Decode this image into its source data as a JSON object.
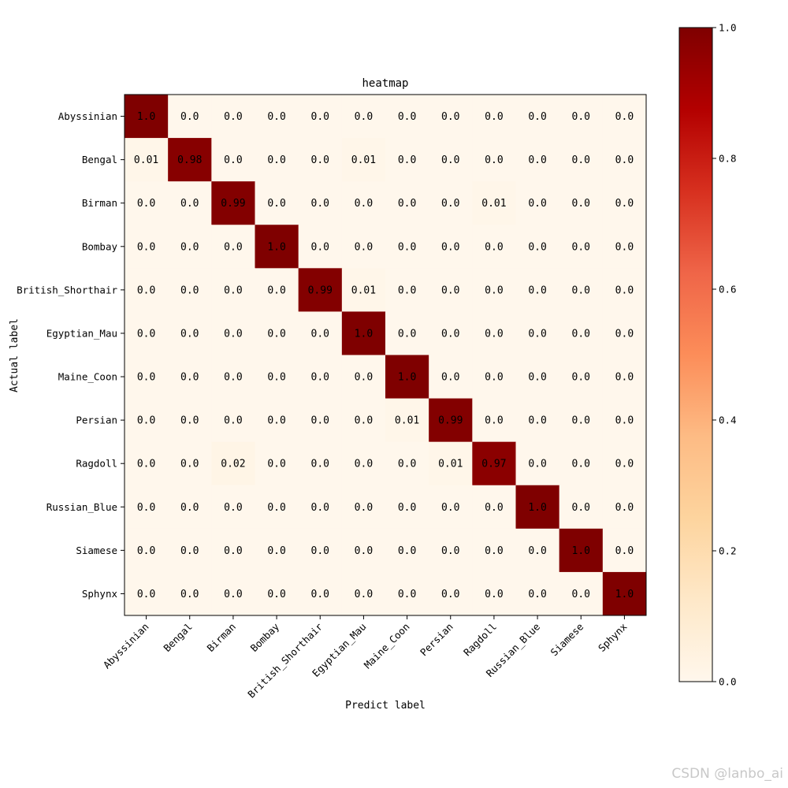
{
  "chart_data": {
    "type": "heatmap",
    "title": "heatmap",
    "xlabel": "Predict label",
    "ylabel": "Actual label",
    "x_categories": [
      "Abyssinian",
      "Bengal",
      "Birman",
      "Bombay",
      "British_Shorthair",
      "Egyptian_Mau",
      "Maine_Coon",
      "Persian",
      "Ragdoll",
      "Russian_Blue",
      "Siamese",
      "Sphynx"
    ],
    "y_categories": [
      "Abyssinian",
      "Bengal",
      "Birman",
      "Bombay",
      "British_Shorthair",
      "Egyptian_Mau",
      "Maine_Coon",
      "Persian",
      "Ragdoll",
      "Russian_Blue",
      "Siamese",
      "Sphynx"
    ],
    "values": [
      [
        1.0,
        0.0,
        0.0,
        0.0,
        0.0,
        0.0,
        0.0,
        0.0,
        0.0,
        0.0,
        0.0,
        0.0
      ],
      [
        0.01,
        0.98,
        0.0,
        0.0,
        0.0,
        0.01,
        0.0,
        0.0,
        0.0,
        0.0,
        0.0,
        0.0
      ],
      [
        0.0,
        0.0,
        0.99,
        0.0,
        0.0,
        0.0,
        0.0,
        0.0,
        0.01,
        0.0,
        0.0,
        0.0
      ],
      [
        0.0,
        0.0,
        0.0,
        1.0,
        0.0,
        0.0,
        0.0,
        0.0,
        0.0,
        0.0,
        0.0,
        0.0
      ],
      [
        0.0,
        0.0,
        0.0,
        0.0,
        0.99,
        0.01,
        0.0,
        0.0,
        0.0,
        0.0,
        0.0,
        0.0
      ],
      [
        0.0,
        0.0,
        0.0,
        0.0,
        0.0,
        1.0,
        0.0,
        0.0,
        0.0,
        0.0,
        0.0,
        0.0
      ],
      [
        0.0,
        0.0,
        0.0,
        0.0,
        0.0,
        0.0,
        1.0,
        0.0,
        0.0,
        0.0,
        0.0,
        0.0
      ],
      [
        0.0,
        0.0,
        0.0,
        0.0,
        0.0,
        0.0,
        0.01,
        0.99,
        0.0,
        0.0,
        0.0,
        0.0
      ],
      [
        0.0,
        0.0,
        0.02,
        0.0,
        0.0,
        0.0,
        0.0,
        0.01,
        0.97,
        0.0,
        0.0,
        0.0
      ],
      [
        0.0,
        0.0,
        0.0,
        0.0,
        0.0,
        0.0,
        0.0,
        0.0,
        0.0,
        1.0,
        0.0,
        0.0
      ],
      [
        0.0,
        0.0,
        0.0,
        0.0,
        0.0,
        0.0,
        0.0,
        0.0,
        0.0,
        0.0,
        1.0,
        0.0
      ],
      [
        0.0,
        0.0,
        0.0,
        0.0,
        0.0,
        0.0,
        0.0,
        0.0,
        0.0,
        0.0,
        0.0,
        1.0
      ]
    ],
    "value_labels": [
      [
        "1.0",
        "0.0",
        "0.0",
        "0.0",
        "0.0",
        "0.0",
        "0.0",
        "0.0",
        "0.0",
        "0.0",
        "0.0",
        "0.0"
      ],
      [
        "0.01",
        "0.98",
        "0.0",
        "0.0",
        "0.0",
        "0.01",
        "0.0",
        "0.0",
        "0.0",
        "0.0",
        "0.0",
        "0.0"
      ],
      [
        "0.0",
        "0.0",
        "0.99",
        "0.0",
        "0.0",
        "0.0",
        "0.0",
        "0.0",
        "0.01",
        "0.0",
        "0.0",
        "0.0"
      ],
      [
        "0.0",
        "0.0",
        "0.0",
        "1.0",
        "0.0",
        "0.0",
        "0.0",
        "0.0",
        "0.0",
        "0.0",
        "0.0",
        "0.0"
      ],
      [
        "0.0",
        "0.0",
        "0.0",
        "0.0",
        "0.99",
        "0.01",
        "0.0",
        "0.0",
        "0.0",
        "0.0",
        "0.0",
        "0.0"
      ],
      [
        "0.0",
        "0.0",
        "0.0",
        "0.0",
        "0.0",
        "1.0",
        "0.0",
        "0.0",
        "0.0",
        "0.0",
        "0.0",
        "0.0"
      ],
      [
        "0.0",
        "0.0",
        "0.0",
        "0.0",
        "0.0",
        "0.0",
        "1.0",
        "0.0",
        "0.0",
        "0.0",
        "0.0",
        "0.0"
      ],
      [
        "0.0",
        "0.0",
        "0.0",
        "0.0",
        "0.0",
        "0.0",
        "0.01",
        "0.99",
        "0.0",
        "0.0",
        "0.0",
        "0.0"
      ],
      [
        "0.0",
        "0.0",
        "0.02",
        "0.0",
        "0.0",
        "0.0",
        "0.0",
        "0.01",
        "0.97",
        "0.0",
        "0.0",
        "0.0"
      ],
      [
        "0.0",
        "0.0",
        "0.0",
        "0.0",
        "0.0",
        "0.0",
        "0.0",
        "0.0",
        "0.0",
        "1.0",
        "0.0",
        "0.0"
      ],
      [
        "0.0",
        "0.0",
        "0.0",
        "0.0",
        "0.0",
        "0.0",
        "0.0",
        "0.0",
        "0.0",
        "0.0",
        "1.0",
        "0.0"
      ],
      [
        "0.0",
        "0.0",
        "0.0",
        "0.0",
        "0.0",
        "0.0",
        "0.0",
        "0.0",
        "0.0",
        "0.0",
        "0.0",
        "1.0"
      ]
    ],
    "colormap": "OrRd",
    "colorbar": {
      "range": [
        0.0,
        1.0
      ],
      "ticks": [
        0.0,
        0.2,
        0.4,
        0.6,
        0.8,
        1.0
      ],
      "tick_labels": [
        "0.0",
        "0.2",
        "0.4",
        "0.6",
        "0.8",
        "1.0"
      ]
    }
  },
  "colors": {
    "cmap_stops": [
      "#fff7ec",
      "#fee8c8",
      "#fdd49e",
      "#fdbb84",
      "#fc8d59",
      "#ef6548",
      "#d7301f",
      "#b30000",
      "#7f0000"
    ],
    "text": "#000000",
    "watermark": "#c8c8c8"
  },
  "watermark": "CSDN @lanbo_ai"
}
